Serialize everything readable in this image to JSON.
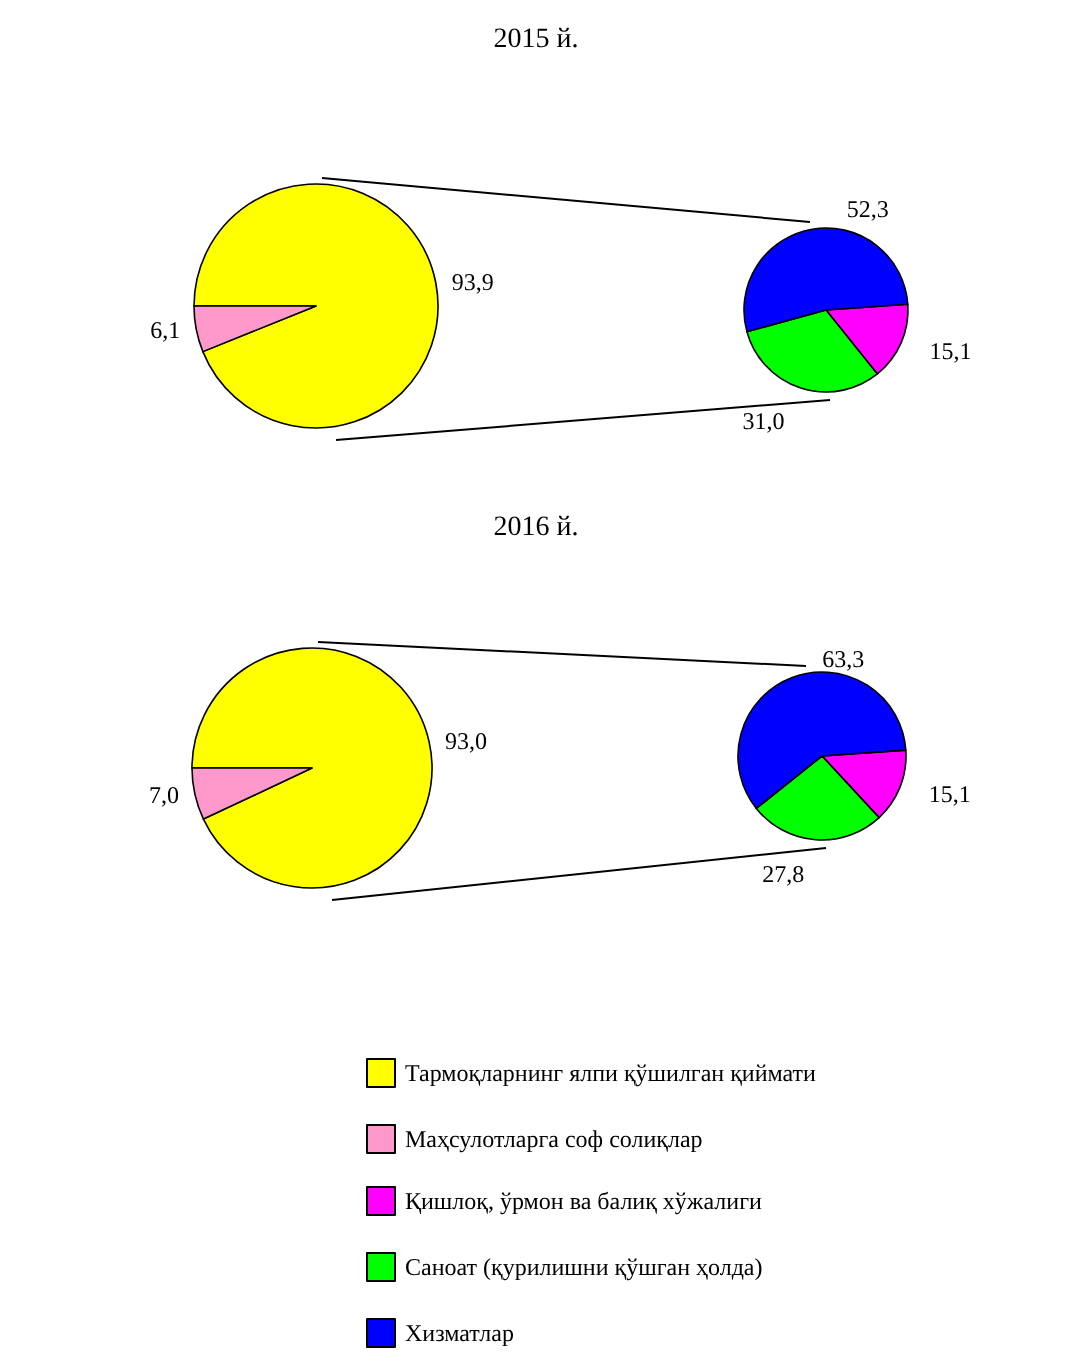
{
  "chart_data": [
    {
      "type": "pie",
      "title": "2015 й.",
      "categories": [
        "Тармоқларнинг ялпи қўшилган қиймати",
        "Маҳсулотларга соф солиқлар"
      ],
      "values": [
        93.9,
        6.1
      ],
      "colors": [
        "#ffff00",
        "#ff99cc"
      ],
      "value_labels": [
        "93,9",
        "6,1"
      ],
      "legend": "bottom"
    },
    {
      "type": "pie",
      "categories": [
        "Қишлоқ, ўрмон ва балиқ хўжалиги",
        "Саноат (қурилишни қўшган ҳолда)",
        "Хизматлар"
      ],
      "values": [
        15.1,
        31.0,
        52.3
      ],
      "colors": [
        "#ff00ff",
        "#00ff00",
        "#0000ff"
      ],
      "value_labels": [
        "15,1",
        "31,0",
        "52,3"
      ],
      "legend": "bottom"
    },
    {
      "type": "pie",
      "title": "2016 й.",
      "categories": [
        null,
        null
      ],
      "values": [
        93.0,
        7.0
      ],
      "colors": [
        "#ffff00",
        "#ff99cc"
      ],
      "value_labels": [
        "93,0",
        "7,0"
      ]
    },
    {
      "type": "pie",
      "categories": [
        null,
        null,
        null
      ],
      "values": [
        15.1,
        27.8,
        63.3
      ],
      "colors": [
        "#ff00ff",
        "#00ff00",
        "#0000ff"
      ],
      "value_labels": [
        "15,1",
        "27,8",
        "63,3"
      ]
    }
  ]
}
